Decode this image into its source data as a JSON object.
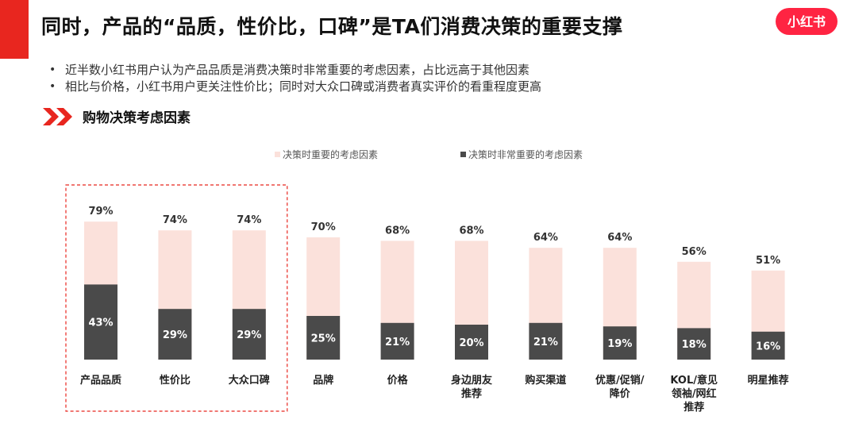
{
  "slide": {
    "title": "同时，产品的“品质，性价比，口碑”是TA们消费决策的重要支撑",
    "logo_text": "小红书",
    "bullets": [
      "近半数小红书用户认为产品品质是消费决策时非常重要的考虑因素，占比远高于其他因素",
      "相比与价格，小红书用户更关注性价比；同时对大众口碑或消费者真实评价的看重程度更高"
    ],
    "bullet_mark": "•",
    "section_title": "购物决策考虑因素"
  },
  "colors": {
    "accent_red": "#e8261f",
    "logo_red": "#ff2442",
    "bar_light": "#fbe1db",
    "bar_dark": "#4a4a4a",
    "highlight_border": "#e8261f"
  },
  "chart_data": {
    "type": "bar",
    "stacked": false,
    "overlapped": true,
    "title": "",
    "categories": [
      "产品品质",
      "性价比",
      "大众口碑",
      "品牌",
      "价格",
      "身边朋友推荐",
      "购买渠道",
      "优惠/促销/降价",
      "KOL/意见领袖/网红推荐",
      "明星推荐"
    ],
    "category_lines": [
      [
        "产品品质"
      ],
      [
        "性价比"
      ],
      [
        "大众口碑"
      ],
      [
        "品牌"
      ],
      [
        "价格"
      ],
      [
        "身边朋友",
        "推荐"
      ],
      [
        "购买渠道"
      ],
      [
        "优惠/促销/",
        "降价"
      ],
      [
        "KOL/意见",
        "领袖/网红",
        "推荐"
      ],
      [
        "明星推荐"
      ]
    ],
    "series": [
      {
        "name": "决策时重要的考虑因素",
        "values": [
          79,
          74,
          74,
          70,
          68,
          68,
          64,
          64,
          56,
          51
        ],
        "labels": [
          "79%",
          "74%",
          "74%",
          "70%",
          "68%",
          "68%",
          "64%",
          "64%",
          "56%",
          "51%"
        ]
      },
      {
        "name": "决策时非常重要的考虑因素",
        "values": [
          43,
          29,
          29,
          25,
          21,
          20,
          21,
          19,
          18,
          16
        ],
        "labels": [
          "43%",
          "29%",
          "29%",
          "25%",
          "21%",
          "20%",
          "21%",
          "19%",
          "18%",
          "16%"
        ]
      }
    ],
    "ylim": [
      0,
      100
    ],
    "unit": "%",
    "grid": false,
    "legend_position": "top-center",
    "highlighted_categories": [
      "产品品质",
      "性价比",
      "大众口碑"
    ]
  }
}
